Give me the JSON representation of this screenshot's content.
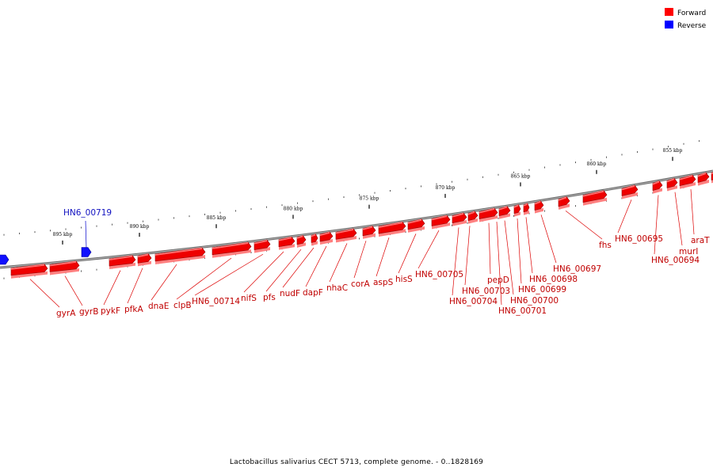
{
  "caption": "Lactobacillus salivarius CECT 5713, complete genome. - 0..1828169",
  "legend": [
    {
      "label": "Forward",
      "color": "#ff0000"
    },
    {
      "label": "Reverse",
      "color": "#0000ff"
    }
  ],
  "kbp_markers": [
    "895 kbp",
    "890 kbp",
    "885 kbp",
    "880 kbp",
    "875 kbp",
    "870 kbp",
    "865 kbp",
    "860 kbp",
    "855 kbp"
  ],
  "reverse_label": "HN6_00719",
  "forward_labels": [
    "gyrA",
    "gyrB",
    "pykF",
    "pfkA",
    "dnaE",
    "clpB",
    "HN6_00714",
    "nifS",
    "pfs",
    "nudF",
    "dapF",
    "nhaC",
    "corA",
    "aspS",
    "hisS",
    "HN6_00705",
    "HN6_00704",
    "HN6_00703",
    "pepD",
    "HN6_00701",
    "HN6_00700",
    "HN6_00699",
    "HN6_00698",
    "HN6_00697",
    "fhs",
    "HN6_00695",
    "HN6_00694",
    "murI",
    "araT"
  ]
}
